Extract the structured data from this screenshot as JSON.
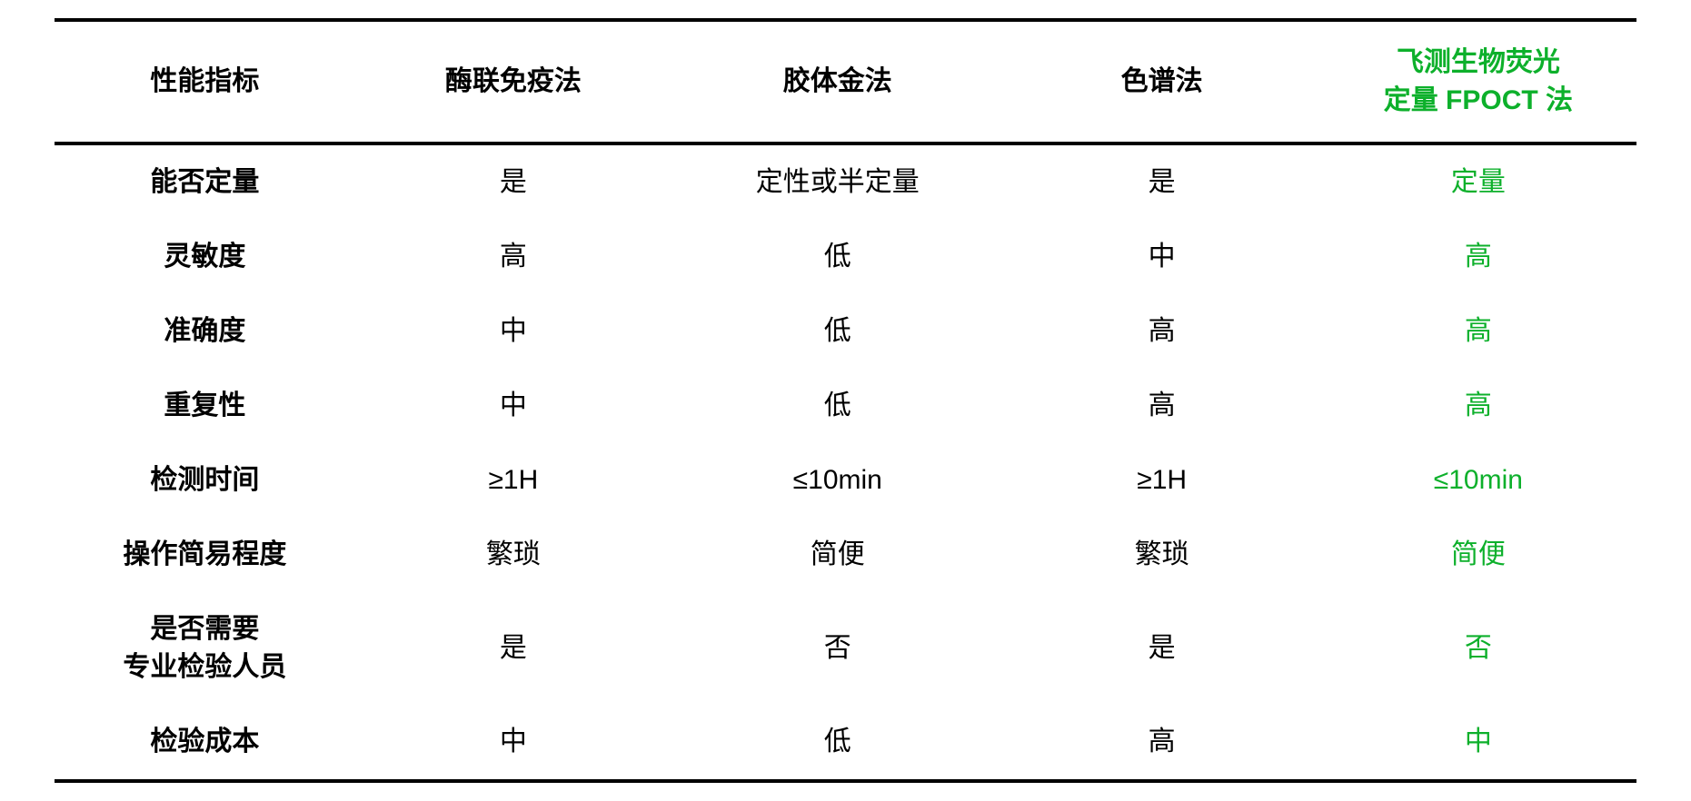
{
  "table": {
    "type": "table",
    "columns": [
      {
        "label": "性能指标",
        "is_highlight": false
      },
      {
        "label": "酶联免疫法",
        "is_highlight": false
      },
      {
        "label": "胶体金法",
        "is_highlight": false
      },
      {
        "label": "色谱法",
        "is_highlight": false
      },
      {
        "label": "飞测生物荧光\n定量 FPOCT 法",
        "is_highlight": true
      }
    ],
    "rows": [
      {
        "header": "能否定量",
        "cells": [
          "是",
          "定性或半定量",
          "是",
          "定量"
        ]
      },
      {
        "header": "灵敏度",
        "cells": [
          "高",
          "低",
          "中",
          "高"
        ]
      },
      {
        "header": "准确度",
        "cells": [
          "中",
          "低",
          "高",
          "高"
        ]
      },
      {
        "header": "重复性",
        "cells": [
          "中",
          "低",
          "高",
          "高"
        ]
      },
      {
        "header": "检测时间",
        "cells": [
          "≥1H",
          "≤10min",
          "≥1H",
          "≤10min"
        ]
      },
      {
        "header": "操作简易程度",
        "cells": [
          "繁琐",
          "简便",
          "繁琐",
          "简便"
        ]
      },
      {
        "header": "是否需要\n专业检验人员",
        "cells": [
          "是",
          "否",
          "是",
          "否"
        ]
      },
      {
        "header": "检验成本",
        "cells": [
          "中",
          "低",
          "高",
          "中"
        ]
      }
    ],
    "highlight_column_index": 4,
    "colors": {
      "text": "#000000",
      "highlight": "#0db02b",
      "background": "#ffffff",
      "border": "#000000"
    },
    "typography": {
      "header_fontsize": 30,
      "header_fontweight": 700,
      "cell_fontsize": 30,
      "row_header_fontweight": 700,
      "font_family": "Microsoft YaHei"
    },
    "layout": {
      "border_top_width": 4,
      "border_header_width": 4,
      "border_bottom_width": 4,
      "cell_padding_vertical": 20,
      "header_padding_vertical": 24,
      "column_widths_pct": [
        19,
        20,
        21,
        20,
        20
      ]
    }
  }
}
